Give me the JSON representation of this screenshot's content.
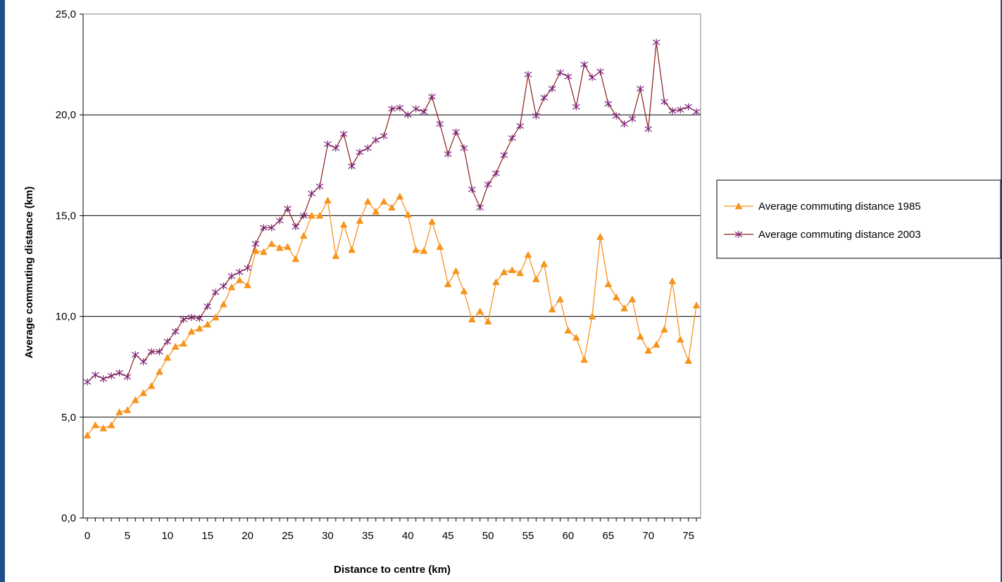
{
  "colors": {
    "series_1985": "#f7941d",
    "series_2003_line": "#8b1a1a",
    "series_2003_marker": "#7a1f7a",
    "border": "#1f4d8a"
  },
  "chart_data": {
    "type": "line",
    "title": "",
    "xlabel": "Distance to centre (km)",
    "ylabel": "Average commuting distance (km)",
    "xlim": [
      0,
      76
    ],
    "ylim": [
      0,
      25
    ],
    "x_ticks": [
      0,
      5,
      10,
      15,
      20,
      25,
      30,
      35,
      40,
      45,
      50,
      55,
      60,
      65,
      70,
      75
    ],
    "x_tick_labels": [
      "0",
      "5",
      "10",
      "15",
      "20",
      "25",
      "30",
      "35",
      "40",
      "45",
      "50",
      "55",
      "60",
      "65",
      "70",
      "75"
    ],
    "y_ticks": [
      0,
      5,
      10,
      15,
      20,
      25
    ],
    "y_tick_labels": [
      "0,0",
      "5,0",
      "10,0",
      "15,0",
      "20,0",
      "25,0"
    ],
    "horizontal_gridlines": true,
    "legend_position": "right",
    "x": [
      0,
      1,
      2,
      3,
      4,
      5,
      6,
      7,
      8,
      9,
      10,
      11,
      12,
      13,
      14,
      15,
      16,
      17,
      18,
      19,
      20,
      21,
      22,
      23,
      24,
      25,
      26,
      27,
      28,
      29,
      30,
      31,
      32,
      33,
      34,
      35,
      36,
      37,
      38,
      39,
      40,
      41,
      42,
      43,
      44,
      45,
      46,
      47,
      48,
      49,
      50,
      51,
      52,
      53,
      54,
      55,
      56,
      57,
      58,
      59,
      60,
      61,
      62,
      63,
      64,
      65,
      66,
      67,
      68,
      69,
      70,
      71,
      72,
      73,
      74,
      75,
      76
    ],
    "series": [
      {
        "name": "Average commuting distance 1985",
        "marker": "triangle",
        "values": [
          4.1,
          4.6,
          4.45,
          4.6,
          5.25,
          5.35,
          5.85,
          6.2,
          6.55,
          7.25,
          7.95,
          8.5,
          8.65,
          9.25,
          9.4,
          9.6,
          9.95,
          10.6,
          11.45,
          11.8,
          11.55,
          13.25,
          13.2,
          13.6,
          13.4,
          13.45,
          12.85,
          14.0,
          15.0,
          15.0,
          15.75,
          13.0,
          14.55,
          13.3,
          14.75,
          15.7,
          15.2,
          15.7,
          15.4,
          15.95,
          15.05,
          13.3,
          13.25,
          14.7,
          13.45,
          11.6,
          12.25,
          11.25,
          9.85,
          10.25,
          9.75,
          11.7,
          12.2,
          12.3,
          12.15,
          13.05,
          11.85,
          12.6,
          10.35,
          10.85,
          9.3,
          8.95,
          7.85,
          10.0,
          13.95,
          11.6,
          10.95,
          10.4,
          10.85,
          9.0,
          8.3,
          8.6,
          9.35,
          11.75,
          8.85,
          7.8,
          10.55
        ]
      },
      {
        "name": "Average commuting distance 2003",
        "marker": "star",
        "values": [
          6.75,
          7.1,
          6.9,
          7.05,
          7.2,
          7.0,
          8.1,
          7.75,
          8.25,
          8.25,
          8.75,
          9.25,
          9.85,
          9.95,
          9.9,
          10.5,
          11.2,
          11.5,
          12.0,
          12.2,
          12.4,
          13.6,
          14.4,
          14.4,
          14.75,
          15.35,
          14.45,
          15.0,
          16.1,
          16.45,
          18.55,
          18.35,
          19.05,
          17.45,
          18.15,
          18.35,
          18.75,
          18.95,
          20.3,
          20.35,
          20.0,
          20.3,
          20.15,
          20.9,
          19.55,
          18.05,
          19.15,
          18.35,
          16.3,
          15.4,
          16.55,
          17.1,
          18.0,
          18.85,
          19.45,
          22.0,
          19.95,
          20.85,
          21.3,
          22.1,
          21.9,
          20.4,
          22.5,
          21.85,
          22.15,
          20.55,
          19.95,
          19.55,
          19.8,
          21.3,
          19.3,
          23.6,
          20.65,
          20.2,
          20.25,
          20.4,
          20.15
        ]
      }
    ]
  }
}
